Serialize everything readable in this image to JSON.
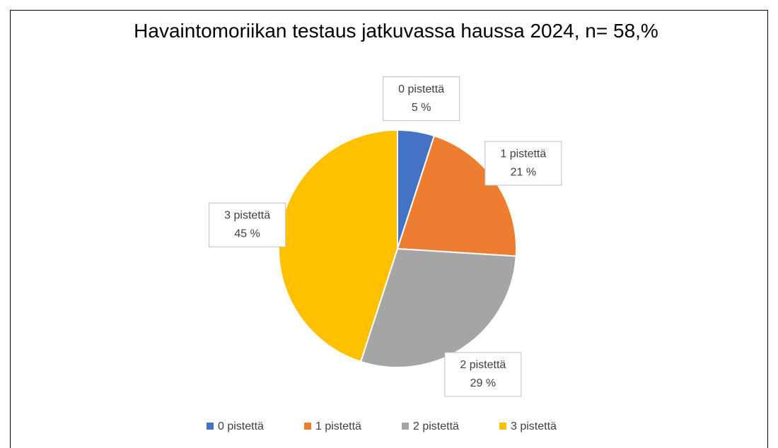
{
  "chart_data": {
    "type": "pie",
    "title": "Havaintomoriikan testaus jatkuvassa haussa 2024, n= 58,%",
    "categories": [
      "0 pistettä",
      "1 pistettä",
      "2 pistettä",
      "3 pistettä"
    ],
    "values": [
      5,
      21,
      29,
      45
    ],
    "value_labels": [
      "5 %",
      "21 %",
      "29 %",
      "45 %"
    ],
    "colors": [
      "#4472c4",
      "#ed7d31",
      "#a5a5a5",
      "#ffc000"
    ],
    "legend": "bottom"
  }
}
